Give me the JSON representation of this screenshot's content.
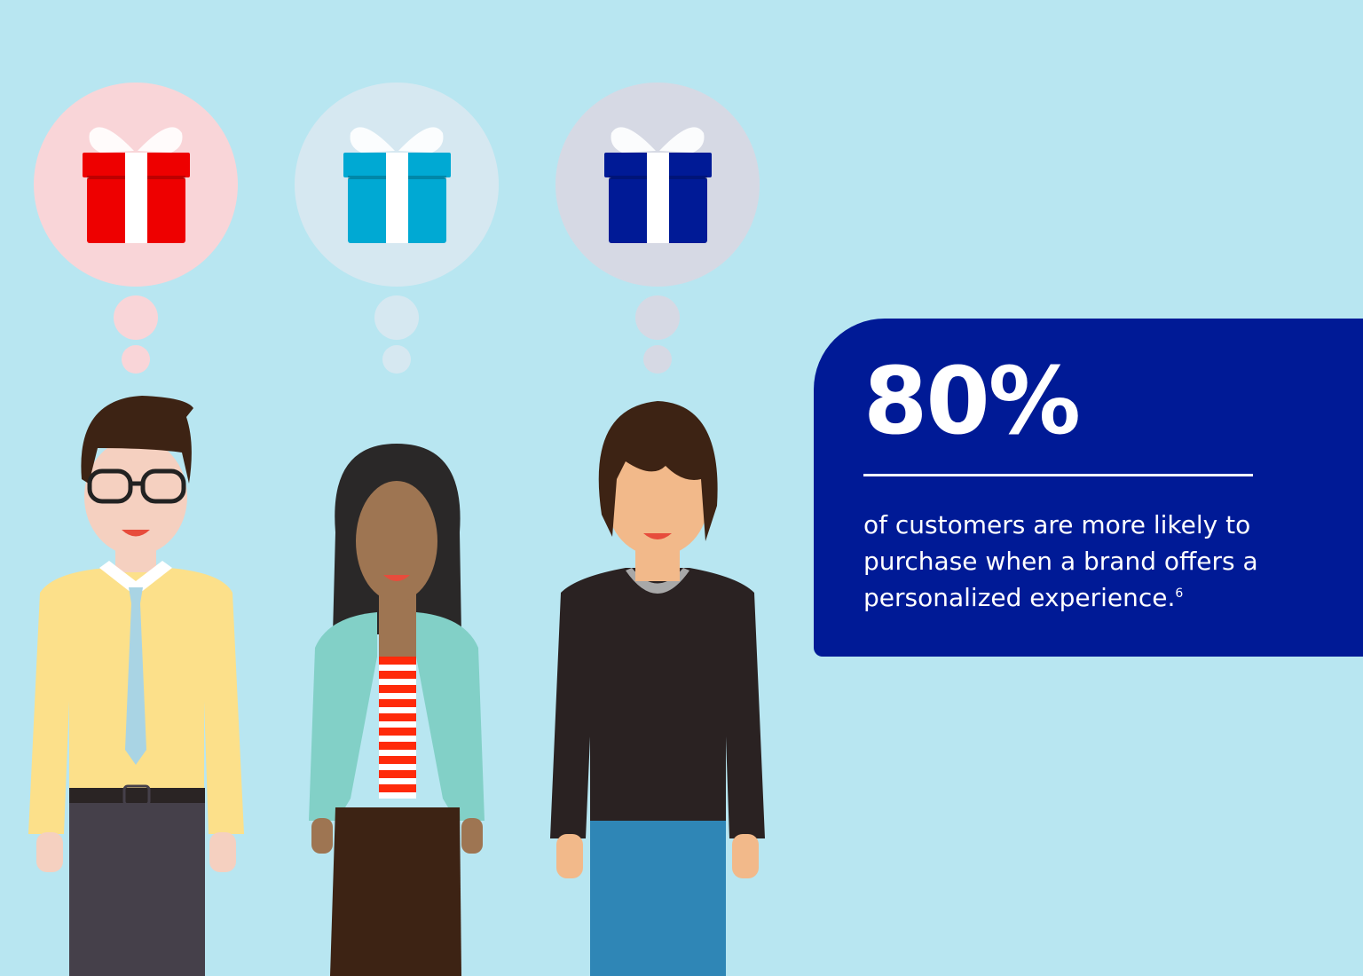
{
  "stat": {
    "value": "80%",
    "description": "of customers are more likely to purchase when a brand offers a personalized experience.",
    "footnote": "6"
  },
  "colors": {
    "background": "#b8e6f1",
    "panel": "#001a96",
    "gift_red": "#ee0000",
    "gift_cyan": "#00a9d3",
    "gift_navy": "#001a96"
  },
  "figures": [
    {
      "gift_color": "gift_red",
      "bubble": "#f9d5d8"
    },
    {
      "gift_color": "gift_cyan",
      "bubble": "#d6e8f1"
    },
    {
      "gift_color": "gift_navy",
      "bubble": "#d6d9e4"
    }
  ]
}
